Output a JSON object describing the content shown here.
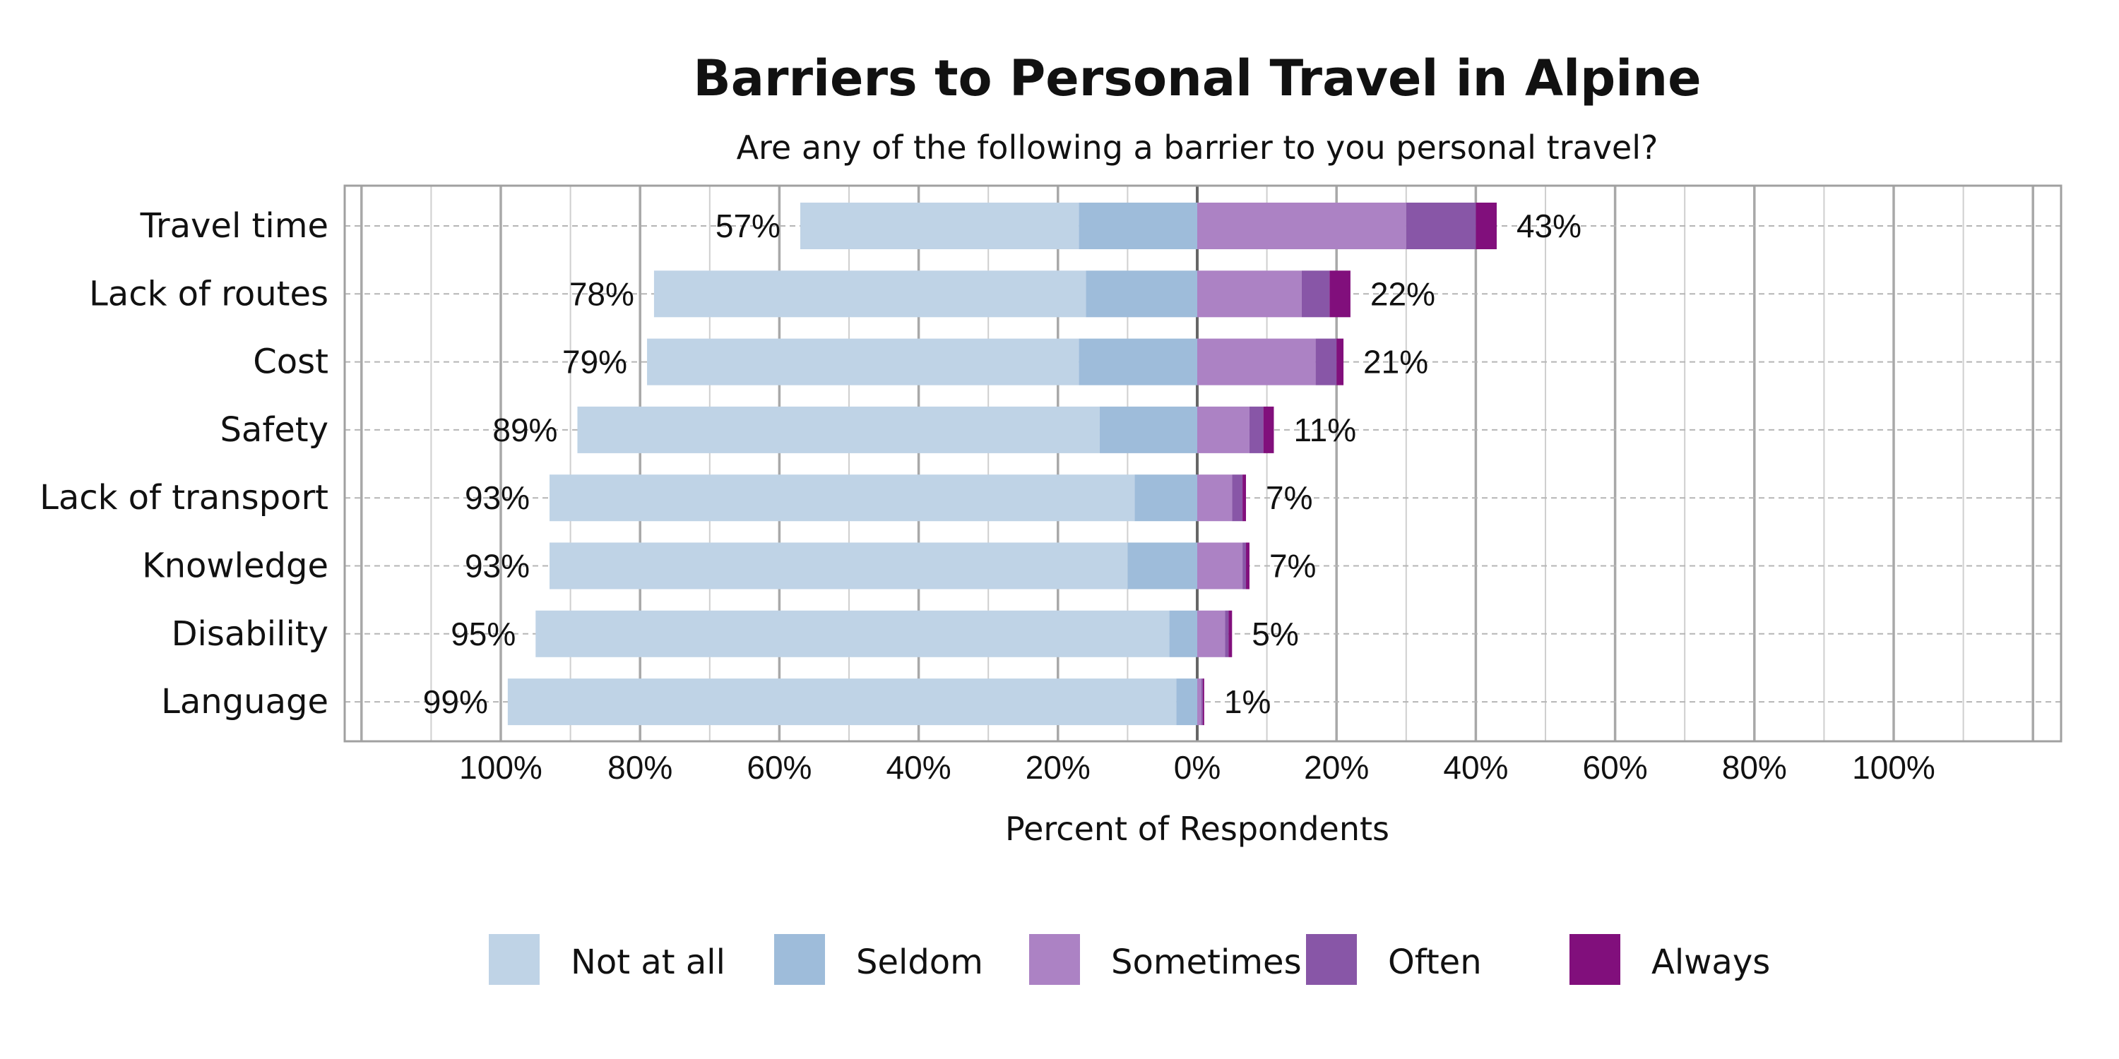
{
  "chart_data": {
    "type": "bar",
    "orientation": "horizontal-diverging",
    "title": "Barriers to Personal Travel in Alpine",
    "subtitle": "Are any of the following a barrier to you personal travel?",
    "xlabel": "Percent of Respondents",
    "xlim": [
      -100,
      100
    ],
    "x_ticks": [
      {
        "value": -100,
        "label": "100%"
      },
      {
        "value": -80,
        "label": "80%"
      },
      {
        "value": -60,
        "label": "60%"
      },
      {
        "value": -40,
        "label": "40%"
      },
      {
        "value": -20,
        "label": "20%"
      },
      {
        "value": 0,
        "label": "0%"
      },
      {
        "value": 20,
        "label": "20%"
      },
      {
        "value": 40,
        "label": "40%"
      },
      {
        "value": 60,
        "label": "60%"
      },
      {
        "value": 80,
        "label": "80%"
      },
      {
        "value": 100,
        "label": "100%"
      }
    ],
    "grid": true,
    "legend_position": "bottom",
    "categories": [
      "Travel time",
      "Lack of routes",
      "Cost",
      "Safety",
      "Lack of transport",
      "Knowledge",
      "Disability",
      "Language"
    ],
    "series": [
      {
        "name": "Not at all",
        "side": "negative",
        "color": "#bfd3e6",
        "values": [
          40,
          62,
          62,
          75,
          84,
          83,
          91,
          96
        ]
      },
      {
        "name": "Seldom",
        "side": "negative",
        "color": "#9ebcda",
        "values": [
          17,
          16,
          17,
          14,
          9,
          10,
          4,
          3
        ]
      },
      {
        "name": "Sometimes",
        "side": "positive",
        "color": "#ac82c4",
        "values": [
          30,
          15,
          17,
          7.5,
          5,
          6.5,
          4,
          0.6
        ]
      },
      {
        "name": "Often",
        "side": "positive",
        "color": "#8856a7",
        "values": [
          10,
          4,
          3,
          2,
          1.5,
          0.5,
          0.5,
          0.2
        ]
      },
      {
        "name": "Always",
        "side": "positive",
        "color": "#810f7c",
        "values": [
          3,
          3,
          1,
          1.5,
          0.5,
          0.5,
          0.5,
          0.2
        ]
      }
    ],
    "negative_totals": [
      "57%",
      "78%",
      "79%",
      "89%",
      "93%",
      "93%",
      "95%",
      "99%"
    ],
    "positive_totals": [
      "43%",
      "22%",
      "21%",
      "11%",
      "7%",
      "7%",
      "5%",
      "1%"
    ]
  }
}
